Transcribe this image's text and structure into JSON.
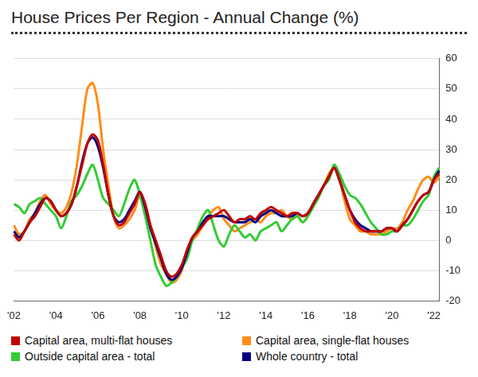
{
  "chart_data": {
    "type": "line",
    "title": "House Prices Per Region - Annual Change (%)",
    "categories": [
      "'02",
      null,
      null,
      null,
      null,
      null,
      null,
      null,
      "'04",
      null,
      null,
      null,
      null,
      null,
      null,
      null,
      "'06",
      null,
      null,
      null,
      null,
      null,
      null,
      null,
      "'08",
      null,
      null,
      null,
      null,
      null,
      null,
      null,
      "'10",
      null,
      null,
      null,
      null,
      null,
      null,
      null,
      "'12",
      null,
      null,
      null,
      null,
      null,
      null,
      null,
      "'14",
      null,
      null,
      null,
      null,
      null,
      null,
      null,
      "'16",
      null,
      null,
      null,
      null,
      null,
      null,
      null,
      "'18",
      null,
      null,
      null,
      null,
      null,
      null,
      null,
      "'20",
      null,
      null,
      null,
      null,
      null,
      null,
      null,
      "'22",
      null
    ],
    "series": [
      {
        "name": "Capital area, multi-flat houses",
        "color": "#c00000",
        "values": [
          2,
          0,
          3,
          6,
          8,
          11,
          14,
          13,
          10,
          8,
          9,
          12,
          18,
          25,
          32,
          35,
          33,
          25,
          15,
          8,
          5,
          6,
          9,
          12,
          16,
          12,
          5,
          0,
          -5,
          -10,
          -12,
          -11,
          -8,
          -3,
          1,
          3,
          5,
          7,
          8,
          9,
          10,
          8,
          6,
          7,
          7,
          8,
          7,
          9,
          10,
          11,
          10,
          9,
          8,
          9,
          9,
          8,
          9,
          12,
          15,
          18,
          21,
          24,
          20,
          15,
          10,
          6,
          4,
          3,
          3,
          3,
          3,
          4,
          4,
          3,
          5,
          7,
          10,
          13,
          15,
          16,
          20,
          22
        ]
      },
      {
        "name": "Capital area, single-flat houses",
        "color": "#ff8c1a",
        "values": [
          5,
          2,
          3,
          7,
          9,
          13,
          15,
          12,
          10,
          9,
          11,
          16,
          25,
          38,
          50,
          52,
          45,
          30,
          18,
          8,
          4,
          5,
          7,
          10,
          15,
          12,
          5,
          -2,
          -8,
          -11,
          -14,
          -13,
          -10,
          -3,
          0,
          2,
          5,
          8,
          10,
          11,
          7,
          5,
          3,
          4,
          5,
          6,
          7,
          6,
          8,
          9,
          9,
          10,
          8,
          7,
          8,
          6,
          8,
          12,
          15,
          18,
          22,
          24,
          20,
          13,
          7,
          5,
          3,
          3,
          2,
          2,
          2,
          3,
          4,
          4,
          6,
          10,
          13,
          17,
          20,
          21,
          19,
          21
        ]
      },
      {
        "name": "Outside capital area - total",
        "color": "#33cc33",
        "values": [
          12,
          11,
          9,
          12,
          13,
          14,
          12,
          10,
          8,
          4,
          8,
          13,
          15,
          18,
          22,
          25,
          20,
          14,
          12,
          10,
          8,
          12,
          17,
          20,
          15,
          8,
          0,
          -8,
          -12,
          -15,
          -14,
          -12,
          -9,
          -6,
          0,
          4,
          8,
          10,
          5,
          0,
          -2,
          2,
          5,
          3,
          1,
          2,
          0,
          3,
          4,
          5,
          6,
          3,
          5,
          7,
          8,
          6,
          8,
          11,
          14,
          18,
          20,
          25,
          22,
          18,
          15,
          14,
          12,
          9,
          6,
          4,
          2,
          2,
          3,
          3,
          5,
          5,
          7,
          10,
          13,
          15,
          21,
          24
        ]
      },
      {
        "name": "Whole country - total",
        "color": "#000080",
        "values": [
          3,
          1,
          3,
          6,
          9,
          12,
          14,
          13,
          10,
          8,
          9,
          12,
          18,
          26,
          32,
          34,
          31,
          24,
          15,
          8,
          6,
          7,
          10,
          13,
          16,
          11,
          4,
          -1,
          -6,
          -11,
          -13,
          -12,
          -9,
          -4,
          1,
          3,
          6,
          8,
          8,
          8,
          8,
          7,
          6,
          6,
          6,
          7,
          6,
          8,
          9,
          10,
          9,
          8,
          8,
          8,
          9,
          8,
          9,
          12,
          15,
          18,
          21,
          24,
          20,
          15,
          10,
          7,
          5,
          4,
          3,
          3,
          3,
          4,
          4,
          3,
          5,
          7,
          10,
          13,
          15,
          16,
          20,
          23
        ]
      }
    ],
    "ylim": [
      -20,
      60
    ],
    "yticks": [
      -20,
      -10,
      0,
      10,
      20,
      30,
      40,
      50,
      60
    ],
    "grid": true,
    "legend": "bottom"
  }
}
